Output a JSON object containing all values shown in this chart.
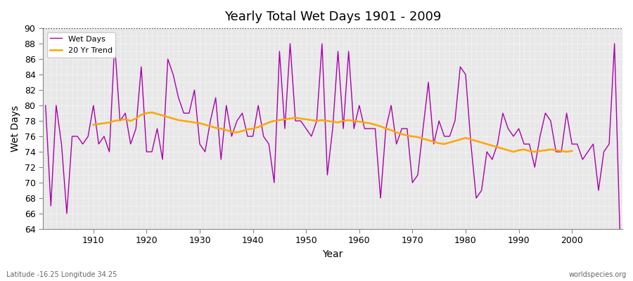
{
  "title": "Yearly Total Wet Days 1901 - 2009",
  "xlabel": "Year",
  "ylabel": "Wet Days",
  "subtitle_left": "Latitude -16.25 Longitude 34.25",
  "subtitle_right": "worldspecies.org",
  "legend_wet": "Wet Days",
  "legend_trend": "20 Yr Trend",
  "wet_color": "#aa00aa",
  "trend_color": "#ffa500",
  "background_color": "#e8e8e8",
  "ylim": [
    64,
    90
  ],
  "yticks": [
    64,
    66,
    68,
    70,
    72,
    74,
    76,
    78,
    80,
    82,
    84,
    86,
    88,
    90
  ],
  "years": [
    1901,
    1902,
    1903,
    1904,
    1905,
    1906,
    1907,
    1908,
    1909,
    1910,
    1911,
    1912,
    1913,
    1914,
    1915,
    1916,
    1917,
    1918,
    1919,
    1920,
    1921,
    1922,
    1923,
    1924,
    1925,
    1926,
    1927,
    1928,
    1929,
    1930,
    1931,
    1932,
    1933,
    1934,
    1935,
    1936,
    1937,
    1938,
    1939,
    1940,
    1941,
    1942,
    1943,
    1944,
    1945,
    1946,
    1947,
    1948,
    1949,
    1950,
    1951,
    1952,
    1953,
    1954,
    1955,
    1956,
    1957,
    1958,
    1959,
    1960,
    1961,
    1962,
    1963,
    1964,
    1965,
    1966,
    1967,
    1968,
    1969,
    1970,
    1971,
    1972,
    1973,
    1974,
    1975,
    1976,
    1977,
    1978,
    1979,
    1980,
    1981,
    1982,
    1983,
    1984,
    1985,
    1986,
    1987,
    1988,
    1989,
    1990,
    1991,
    1992,
    1993,
    1994,
    1995,
    1996,
    1997,
    1998,
    1999,
    2000,
    2001,
    2002,
    2003,
    2004,
    2005,
    2006,
    2007,
    2008,
    2009
  ],
  "wet_days": [
    80,
    67,
    80,
    75,
    66,
    76,
    76,
    75,
    76,
    80,
    75,
    76,
    74,
    88,
    78,
    79,
    75,
    77,
    85,
    74,
    74,
    77,
    73,
    86,
    84,
    81,
    79,
    79,
    82,
    75,
    74,
    78,
    81,
    73,
    80,
    76,
    78,
    79,
    76,
    76,
    80,
    76,
    75,
    70,
    87,
    77,
    88,
    78,
    78,
    77,
    76,
    78,
    88,
    71,
    77,
    87,
    77,
    87,
    77,
    80,
    77,
    77,
    77,
    68,
    77,
    80,
    75,
    77,
    77,
    70,
    71,
    77,
    83,
    75,
    78,
    76,
    76,
    78,
    85,
    84,
    75,
    68,
    69,
    74,
    73,
    75,
    79,
    77,
    76,
    77,
    75,
    75,
    72,
    76,
    79,
    78,
    74,
    74,
    79,
    75,
    75,
    73,
    74,
    75,
    69,
    74,
    75,
    88,
    64
  ],
  "trend_years": [
    1910,
    1911,
    1912,
    1913,
    1914,
    1915,
    1916,
    1917,
    1918,
    1919,
    1920,
    1921,
    1922,
    1923,
    1924,
    1925,
    1926,
    1927,
    1928,
    1929,
    1930,
    1931,
    1932,
    1933,
    1934,
    1935,
    1936,
    1937,
    1938,
    1939,
    1940,
    1941,
    1942,
    1943,
    1944,
    1945,
    1946,
    1947,
    1948,
    1949,
    1950,
    1951,
    1952,
    1953,
    1954,
    1955,
    1956,
    1957,
    1958,
    1959,
    1960,
    1961,
    1962,
    1963,
    1964,
    1965,
    1966,
    1967,
    1968,
    1969,
    1970,
    1971,
    1972,
    1973,
    1974,
    1975,
    1976,
    1977,
    1978,
    1979,
    1980,
    1981,
    1982,
    1983,
    1984,
    1985,
    1986,
    1987,
    1988,
    1989,
    1990,
    1991,
    1992,
    1993,
    1994,
    1995,
    1996,
    1997,
    1998,
    1999,
    2000
  ],
  "trend_values": [
    77.5,
    77.6,
    77.7,
    77.8,
    78.0,
    78.1,
    78.2,
    78.0,
    78.3,
    78.8,
    79.0,
    79.1,
    78.9,
    78.7,
    78.5,
    78.3,
    78.1,
    78.0,
    77.9,
    77.8,
    77.7,
    77.5,
    77.3,
    77.1,
    77.0,
    76.8,
    76.6,
    76.5,
    76.7,
    76.9,
    77.0,
    77.2,
    77.5,
    77.8,
    78.0,
    78.1,
    78.2,
    78.3,
    78.4,
    78.3,
    78.2,
    78.1,
    78.0,
    78.1,
    78.0,
    77.9,
    77.8,
    78.0,
    78.1,
    78.0,
    77.9,
    77.8,
    77.7,
    77.5,
    77.3,
    77.0,
    76.8,
    76.5,
    76.3,
    76.1,
    76.0,
    75.9,
    75.7,
    75.5,
    75.3,
    75.1,
    75.0,
    75.2,
    75.4,
    75.6,
    75.8,
    75.6,
    75.4,
    75.2,
    75.0,
    74.8,
    74.6,
    74.4,
    74.2,
    74.0,
    74.2,
    74.3,
    74.1,
    74.0,
    74.1,
    74.2,
    74.3,
    74.2,
    74.1,
    74.0,
    74.1
  ]
}
